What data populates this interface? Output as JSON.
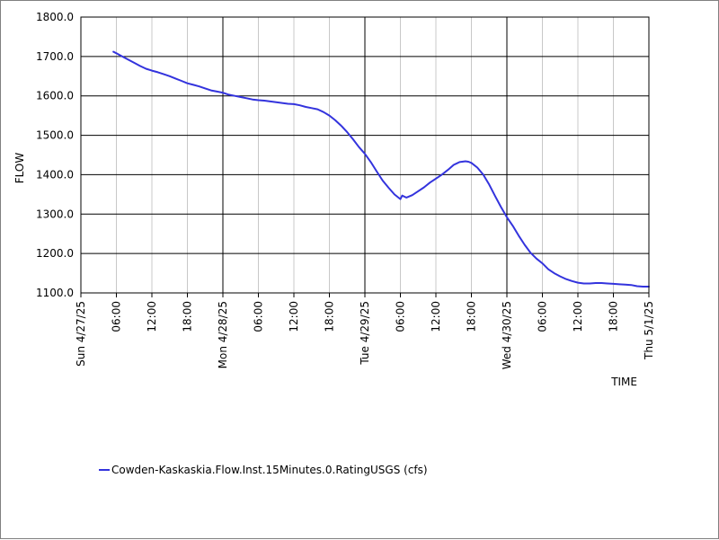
{
  "chart_data": {
    "type": "line",
    "title": "",
    "xlabel": "TIME",
    "ylabel": "FLOW",
    "ylim": [
      1100,
      1800
    ],
    "xlim_hours": [
      0,
      96
    ],
    "y_ticks": [
      "1100.0",
      "1200.0",
      "1300.0",
      "1400.0",
      "1500.0",
      "1600.0",
      "1700.0",
      "1800.0"
    ],
    "y_tick_values": [
      1100,
      1200,
      1300,
      1400,
      1500,
      1600,
      1700,
      1800
    ],
    "x_ticks": [
      {
        "hour": 0,
        "label": "Sun 4/27/25",
        "major": true
      },
      {
        "hour": 6,
        "label": "06:00",
        "major": false
      },
      {
        "hour": 12,
        "label": "12:00",
        "major": false
      },
      {
        "hour": 18,
        "label": "18:00",
        "major": false
      },
      {
        "hour": 24,
        "label": "Mon 4/28/25",
        "major": true
      },
      {
        "hour": 30,
        "label": "06:00",
        "major": false
      },
      {
        "hour": 36,
        "label": "12:00",
        "major": false
      },
      {
        "hour": 42,
        "label": "18:00",
        "major": false
      },
      {
        "hour": 48,
        "label": "Tue 4/29/25",
        "major": true
      },
      {
        "hour": 54,
        "label": "06:00",
        "major": false
      },
      {
        "hour": 60,
        "label": "12:00",
        "major": false
      },
      {
        "hour": 66,
        "label": "18:00",
        "major": false
      },
      {
        "hour": 72,
        "label": "Wed 4/30/25",
        "major": true
      },
      {
        "hour": 78,
        "label": "06:00",
        "major": false
      },
      {
        "hour": 84,
        "label": "12:00",
        "major": false
      },
      {
        "hour": 90,
        "label": "18:00",
        "major": false
      },
      {
        "hour": 96,
        "label": "Thu 5/1/25",
        "major": true
      }
    ],
    "grid": true,
    "legend_position": "bottom-left",
    "series": [
      {
        "name": "Cowden-Kaskaskia.Flow.Inst.15Minutes.0.RatingUSGS (cfs)",
        "color": "#3333dd",
        "x": [
          5.5,
          6,
          7,
          8,
          9,
          10,
          11,
          12,
          13,
          14,
          15,
          16,
          17,
          18,
          19,
          20,
          21,
          22,
          23,
          24,
          25,
          26,
          27,
          28,
          29,
          30,
          31,
          32,
          33,
          34,
          35,
          36,
          37,
          38,
          39,
          40,
          41,
          42,
          43,
          44,
          45,
          46,
          47,
          48,
          49,
          50,
          51,
          52,
          53,
          54,
          54.3,
          55,
          56,
          57,
          58,
          59,
          60,
          61,
          62,
          63,
          64,
          65,
          65.5,
          66,
          67,
          68,
          69,
          70,
          71,
          72,
          73,
          74,
          75,
          76,
          77,
          78,
          79,
          80,
          81,
          82,
          83,
          84,
          85,
          86,
          87,
          88,
          89,
          90,
          91,
          92,
          93,
          94,
          95,
          96
        ],
        "values": [
          1712,
          1708,
          1700,
          1692,
          1684,
          1676,
          1669,
          1664,
          1660,
          1655,
          1650,
          1644,
          1638,
          1632,
          1628,
          1624,
          1619,
          1614,
          1611,
          1608,
          1603,
          1600,
          1597,
          1594,
          1591,
          1589,
          1588,
          1586,
          1584,
          1582,
          1580,
          1579,
          1576,
          1572,
          1569,
          1566,
          1559,
          1550,
          1538,
          1524,
          1508,
          1490,
          1470,
          1453,
          1432,
          1408,
          1385,
          1367,
          1350,
          1338,
          1347,
          1342,
          1348,
          1358,
          1368,
          1380,
          1390,
          1400,
          1412,
          1425,
          1432,
          1434,
          1433,
          1430,
          1418,
          1400,
          1375,
          1346,
          1318,
          1292,
          1270,
          1245,
          1222,
          1202,
          1187,
          1175,
          1160,
          1150,
          1142,
          1135,
          1130,
          1126,
          1124,
          1124,
          1125,
          1125,
          1124,
          1123,
          1122,
          1121,
          1120,
          1117,
          1116,
          1116
        ]
      }
    ]
  }
}
